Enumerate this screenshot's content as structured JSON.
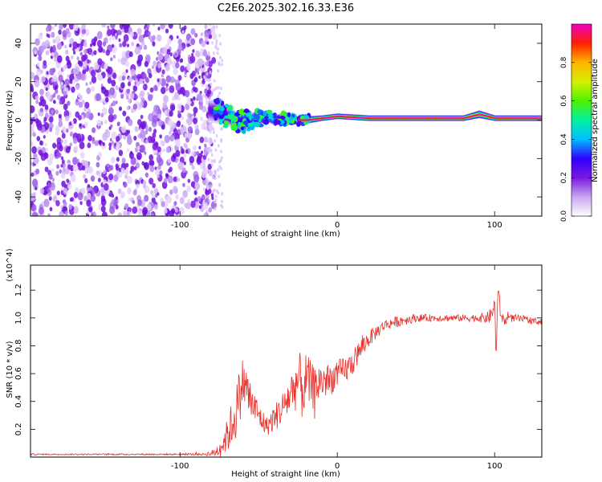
{
  "title": "C2E6.2025.302.16.33.E36",
  "colorbar": {
    "label": "Normalized spectral amplitude",
    "ticks": [
      "0.0",
      "0.2",
      "0.4",
      "0.6",
      "0.8"
    ],
    "tick_values": [
      0.0,
      0.2,
      0.4,
      0.6,
      0.8
    ],
    "range": [
      0,
      1
    ],
    "colormap": [
      "#ffffff",
      "#c9a6f2",
      "#7a18e0",
      "#2f00ff",
      "#00bfff",
      "#00f0a0",
      "#4cf200",
      "#d4f000",
      "#ffb400",
      "#ff2000",
      "#f000c0"
    ]
  },
  "colors": {
    "snr_line": "#e8302a",
    "frame": "#000000"
  },
  "chart_data": [
    {
      "type": "heatmap",
      "title": "C2E6.2025.302.16.33.E36",
      "xlabel": "Height of straight line (km)",
      "ylabel": "Frequency (Hz)",
      "xlim": [
        -195,
        130
      ],
      "ylim": [
        -50,
        50
      ],
      "x_ticks": [
        -100,
        0,
        100
      ],
      "x_tick_labels": [
        "-100",
        "0",
        "100"
      ],
      "y_ticks": [
        -40,
        -20,
        0,
        20,
        40
      ],
      "y_tick_labels": [
        "-40",
        "-20",
        "0",
        "20",
        "40"
      ],
      "noise_region_x": [
        -195,
        -78
      ],
      "ridge": {
        "x": [
          -82,
          -75,
          -70,
          -65,
          -60,
          -55,
          -50,
          -45,
          -40,
          -35,
          -30,
          -25,
          -20,
          -10,
          0,
          20,
          40,
          60,
          80,
          90,
          100,
          110,
          130
        ],
        "freq": [
          5,
          4,
          2,
          0,
          -1,
          0,
          1,
          2,
          0,
          1,
          0,
          0,
          0,
          1,
          2,
          1,
          1,
          1,
          1,
          3,
          1,
          1,
          1
        ],
        "half_width": [
          6,
          6,
          5,
          5,
          5,
          4,
          4,
          3,
          3,
          2.5,
          2.5,
          2,
          2,
          1.5,
          1.5,
          1.5,
          1.5,
          1.5,
          1.5,
          2,
          1.5,
          1.5,
          1.5
        ],
        "amplitude": [
          0.3,
          0.35,
          0.35,
          0.35,
          0.4,
          0.4,
          0.45,
          0.45,
          0.5,
          0.6,
          0.7,
          0.8,
          0.85,
          0.9,
          0.95,
          0.95,
          0.95,
          0.95,
          0.95,
          1.0,
          0.95,
          0.95,
          0.95
        ]
      }
    },
    {
      "type": "line",
      "xlabel": "Height of straight line (km)",
      "ylabel": "SNR (10 * v/v)",
      "y_multiplier": "(x10^4)",
      "xlim": [
        -195,
        130
      ],
      "ylim": [
        0,
        1.38
      ],
      "x_ticks": [
        -100,
        0,
        100
      ],
      "x_tick_labels": [
        "-100",
        "0",
        "100"
      ],
      "y_ticks": [
        0.2,
        0.4,
        0.6,
        0.8,
        1.0,
        1.2
      ],
      "y_tick_labels": [
        "0.2",
        "0.4",
        "0.6",
        "0.8",
        "1.0",
        "1.2"
      ],
      "series": [
        {
          "name": "SNR",
          "x": [
            -195,
            -150,
            -100,
            -85,
            -78,
            -75,
            -70,
            -65,
            -62,
            -60,
            -58,
            -55,
            -50,
            -45,
            -40,
            -35,
            -30,
            -25,
            -22,
            -20,
            -15,
            -10,
            -5,
            0,
            5,
            10,
            15,
            20,
            25,
            30,
            40,
            50,
            60,
            70,
            80,
            90,
            95,
            98,
            100,
            101,
            102,
            104,
            106,
            110,
            120,
            130
          ],
          "y": [
            0.02,
            0.02,
            0.02,
            0.02,
            0.03,
            0.06,
            0.15,
            0.3,
            0.45,
            0.55,
            0.5,
            0.4,
            0.3,
            0.22,
            0.28,
            0.35,
            0.45,
            0.55,
            0.5,
            0.55,
            0.5,
            0.55,
            0.55,
            0.6,
            0.62,
            0.68,
            0.78,
            0.85,
            0.9,
            0.95,
            0.98,
            1.0,
            1.0,
            1.0,
            1.0,
            1.0,
            1.0,
            1.02,
            1.1,
            0.72,
            1.2,
            1.02,
            0.98,
            1.0,
            0.99,
            0.97
          ],
          "noise": [
            0.005,
            0.005,
            0.006,
            0.008,
            0.03,
            0.06,
            0.12,
            0.2,
            0.2,
            0.18,
            0.18,
            0.15,
            0.1,
            0.07,
            0.1,
            0.12,
            0.16,
            0.2,
            0.25,
            0.2,
            0.16,
            0.14,
            0.12,
            0.1,
            0.1,
            0.09,
            0.08,
            0.06,
            0.05,
            0.04,
            0.04,
            0.03,
            0.025,
            0.025,
            0.025,
            0.03,
            0.04,
            0.06,
            0.06,
            0.05,
            0.08,
            0.05,
            0.04,
            0.03,
            0.025,
            0.025
          ]
        }
      ],
      "annotations": [
        {
          "x": -78,
          "y": 0.02,
          "label": ""
        }
      ]
    }
  ]
}
